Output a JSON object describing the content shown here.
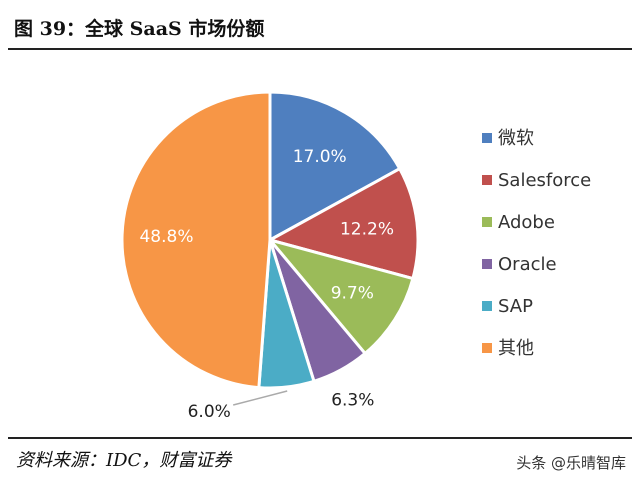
{
  "figure": {
    "title": "图 39：全球 SaaS 市场份额",
    "source": "资料来源：IDC，财富证券",
    "watermark": "头条 @乐晴智库"
  },
  "chart_data": {
    "type": "pie",
    "title": "",
    "legend_position": "right",
    "slices": [
      {
        "name": "微软",
        "value": 17.0,
        "label": "17.0%",
        "color": "#4f7fbf"
      },
      {
        "name": "Salesforce",
        "value": 12.2,
        "label": "12.2%",
        "color": "#c0504d"
      },
      {
        "name": "Adobe",
        "value": 9.7,
        "label": "9.7%",
        "color": "#9bbb59"
      },
      {
        "name": "Oracle",
        "value": 6.3,
        "label": "6.3%",
        "color": "#8064a2"
      },
      {
        "name": "SAP",
        "value": 6.0,
        "label": "6.0%",
        "color": "#4bacc6"
      },
      {
        "name": "其他",
        "value": 48.8,
        "label": "48.8%",
        "color": "#f79646"
      }
    ]
  }
}
